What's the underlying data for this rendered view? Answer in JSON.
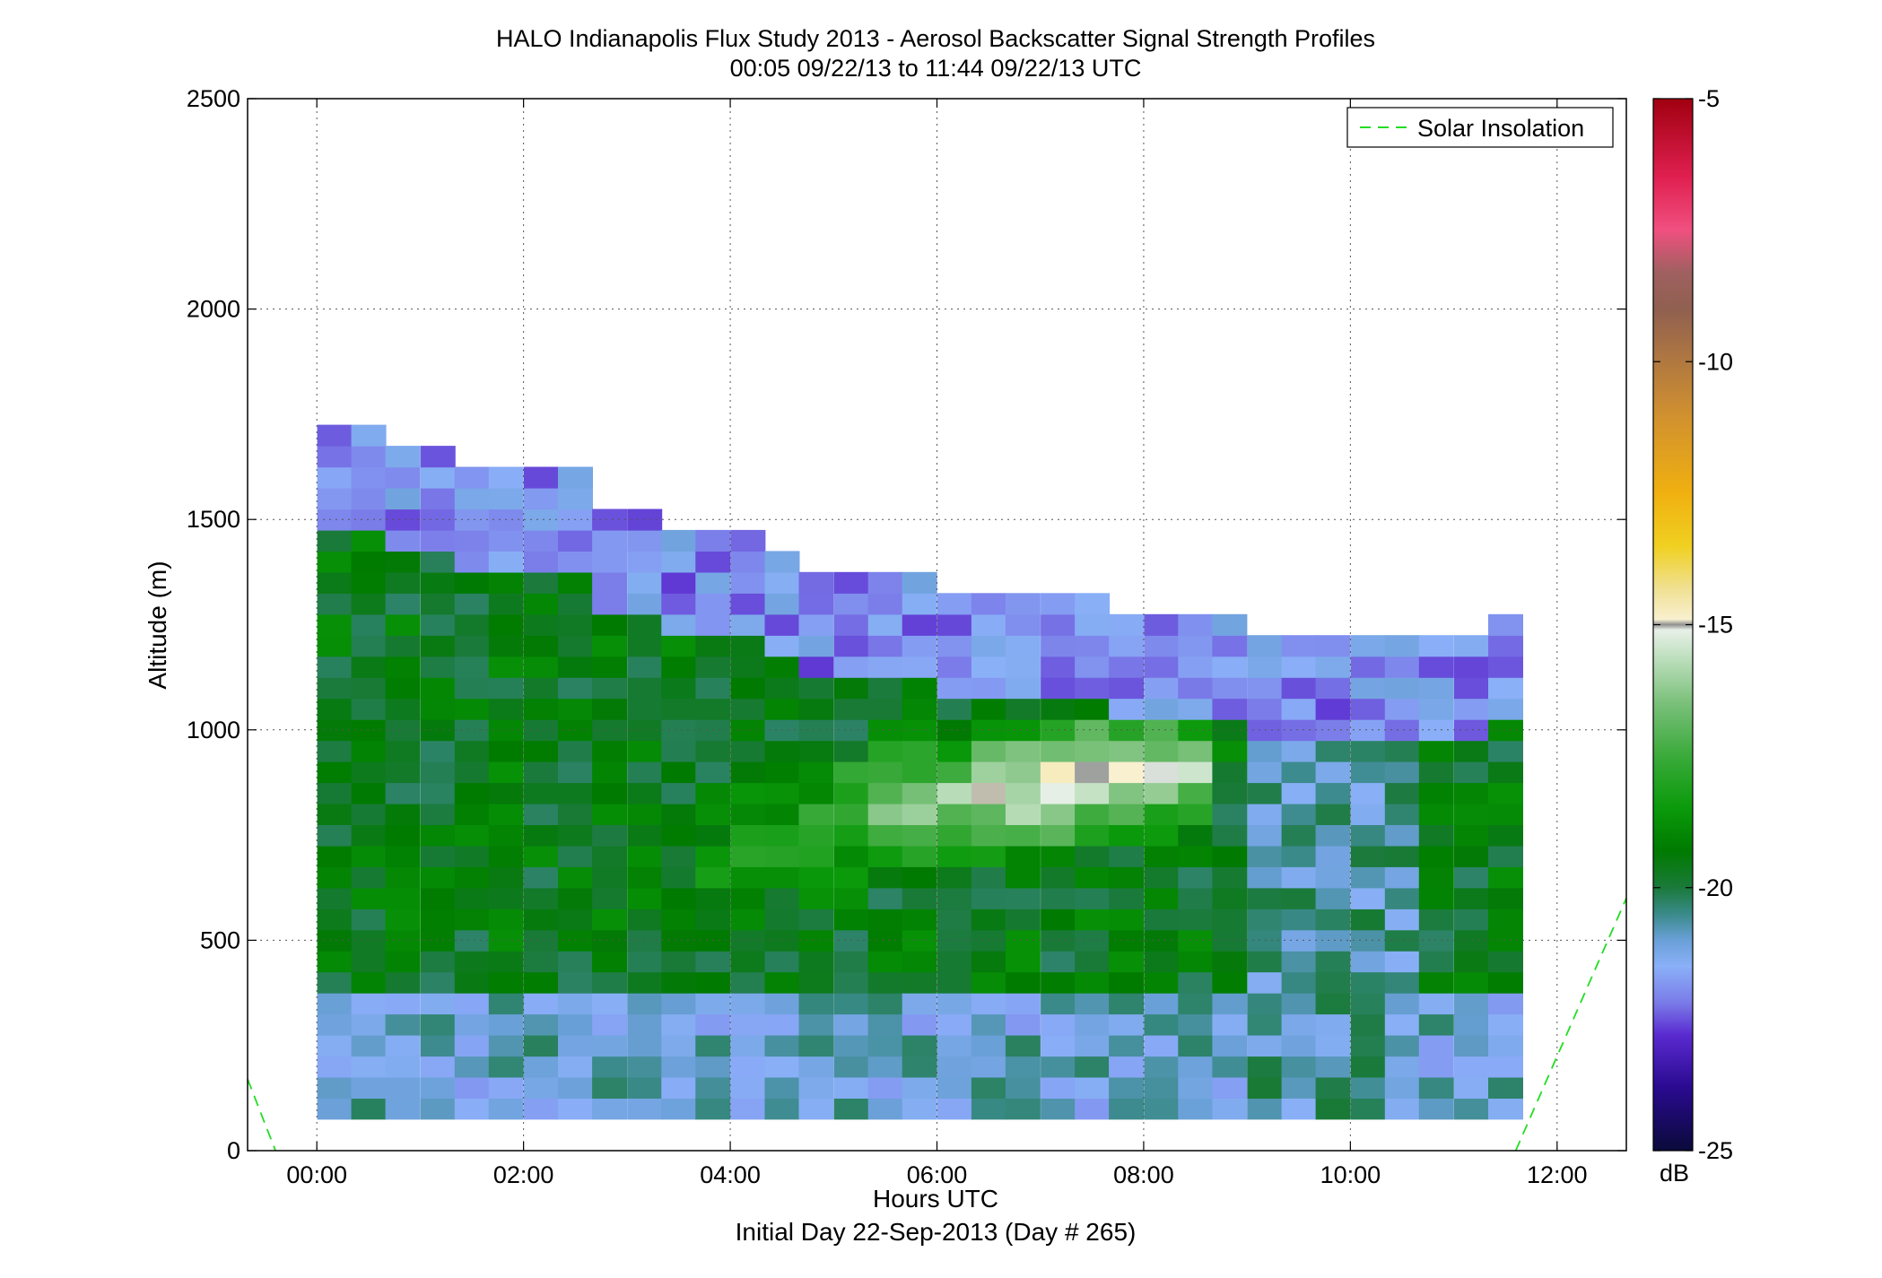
{
  "chart_data": {
    "type": "heatmap",
    "title": "HALO Indianapolis Flux Study 2013 - Aerosol Backscatter Signal Strength Profiles",
    "subtitle": "00:05 09/22/13 to 11:44 09/22/13  UTC",
    "xlabel": "Hours UTC",
    "xlabel2": "Initial Day 22-Sep-2013 (Day # 265)",
    "ylabel": "Altitude (m)",
    "xlim": [
      -0.67,
      12.67
    ],
    "ylim": [
      0,
      2500
    ],
    "x_ticks": [
      0,
      2,
      4,
      6,
      8,
      10,
      12
    ],
    "x_tick_labels": [
      "00:00",
      "02:00",
      "04:00",
      "06:00",
      "08:00",
      "10:00",
      "12:00"
    ],
    "y_ticks": [
      0,
      500,
      1000,
      1500,
      2000,
      2500
    ],
    "y_tick_labels": [
      "0",
      "500",
      "1000",
      "1500",
      "2000",
      "2500"
    ],
    "grid": true,
    "legend": {
      "position": "top-right",
      "entries": [
        "Solar Insolation"
      ]
    },
    "colorbar": {
      "min": -25,
      "max": -5,
      "unit": "dB",
      "tick_values": [
        -5,
        -10,
        -15,
        -20,
        -25
      ],
      "tick_labels": [
        "-5",
        "-10",
        "-15",
        "-20",
        "-25"
      ],
      "stops": [
        [
          -25,
          "#0a0a3a"
        ],
        [
          -23.8,
          "#2a0a90"
        ],
        [
          -22.8,
          "#5a2ad0"
        ],
        [
          -22.2,
          "#7a7ae8"
        ],
        [
          -21.5,
          "#8ab0f8"
        ],
        [
          -21.0,
          "#6aa0d8"
        ],
        [
          -20.5,
          "#3a8a8a"
        ],
        [
          -20.0,
          "#1a7a3a"
        ],
        [
          -19.3,
          "#007a00"
        ],
        [
          -18.5,
          "#0a9a0a"
        ],
        [
          -17.5,
          "#3aaa3a"
        ],
        [
          -16.5,
          "#7ac07a"
        ],
        [
          -15.6,
          "#c0e0c0"
        ],
        [
          -15.1,
          "#e8f0e8"
        ],
        [
          -15.0,
          "#909090"
        ],
        [
          -14.9,
          "#f8f0d0"
        ],
        [
          -14.3,
          "#f0e090"
        ],
        [
          -13.5,
          "#f0d020"
        ],
        [
          -12.5,
          "#f0b010"
        ],
        [
          -11,
          "#d09030"
        ],
        [
          -10,
          "#b07840"
        ],
        [
          -9,
          "#906050"
        ],
        [
          -8.3,
          "#a06060"
        ],
        [
          -7.5,
          "#f05080"
        ],
        [
          -6.5,
          "#e02050"
        ],
        [
          -5,
          "#a00010"
        ]
      ]
    },
    "solar_insolation_series": {
      "name": "Solar Insolation",
      "color": "#22dd22",
      "segments": [
        {
          "x": [
            -0.67,
            -0.4
          ],
          "y": [
            170,
            0
          ]
        },
        {
          "x": [
            11.6,
            12.67
          ],
          "y": [
            0,
            600
          ]
        }
      ]
    },
    "profile_times_h": [
      0.17,
      0.5,
      0.83,
      1.17,
      1.5,
      1.83,
      2.17,
      2.5,
      2.83,
      3.17,
      3.5,
      3.83,
      4.17,
      4.5,
      4.83,
      5.17,
      5.5,
      5.83,
      6.17,
      6.5,
      6.83,
      7.17,
      7.5,
      7.83,
      8.17,
      8.5,
      8.83,
      9.17,
      9.5,
      9.83,
      10.17,
      10.5,
      10.83,
      11.17,
      11.5
    ],
    "range_gate_bottom_m": 75,
    "range_gate_height_m": 50,
    "profile_tops_m": [
      1685,
      1685,
      1645,
      1645,
      1585,
      1585,
      1585,
      1585,
      1485,
      1485,
      1445,
      1445,
      1445,
      1405,
      1365,
      1365,
      1335,
      1335,
      1295,
      1295,
      1295,
      1295,
      1295,
      1255,
      1255,
      1255,
      1255,
      1205,
      1195,
      1205,
      1185,
      1205,
      1205,
      1205,
      1265
    ],
    "plume_surface_dB": -21.0,
    "plume_core_dB": -14.5,
    "mixed_layer_dB": -19.5,
    "residual_layer_dB": -21.5
  }
}
